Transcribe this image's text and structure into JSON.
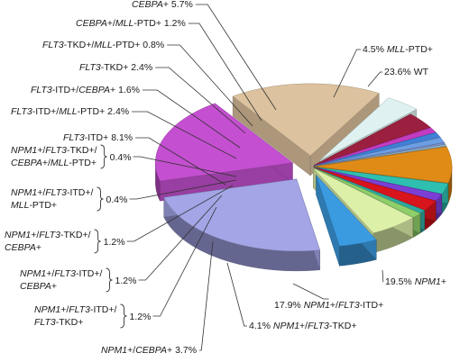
{
  "chart_data": {
    "type": "pie",
    "style": "3d-exploded",
    "slices": [
      {
        "label": "WT",
        "value": 23.6,
        "color": "#a3a5e6",
        "text": [
          {
            "t": "23.6% WT"
          }
        ]
      },
      {
        "label": "NPM1+",
        "value": 19.5,
        "color": "#c44fd0",
        "text": [
          {
            "t": "19.5% "
          },
          {
            "t": "NPM1",
            "i": true
          },
          {
            "t": "+"
          }
        ]
      },
      {
        "label": "NPM1+/FLT3-ITD+",
        "value": 17.9,
        "color": "#dcc29e",
        "text": [
          {
            "t": "17.9% "
          },
          {
            "t": "NPM1",
            "i": true
          },
          {
            "t": "+/"
          },
          {
            "t": "FLT3",
            "i": true
          },
          {
            "t": "-ITD+"
          }
        ]
      },
      {
        "label": "NPM1+/FLT3-TKD+",
        "value": 4.1,
        "color": "#dff2f1",
        "text": [
          {
            "t": "4.1% "
          },
          {
            "t": "NPM1",
            "i": true
          },
          {
            "t": "+/"
          },
          {
            "t": "FLT3",
            "i": true
          },
          {
            "t": "-TKD+"
          }
        ]
      },
      {
        "label": "NPM1+/CEBPA+",
        "value": 3.7,
        "color": "#9b1f3f",
        "text": [
          {
            "t": "NPM1",
            "i": true
          },
          {
            "t": "+/"
          },
          {
            "t": "CEBPA",
            "i": true
          },
          {
            "t": "+ 3.7%"
          }
        ]
      },
      {
        "label": "NPM1+/FLT3-ITD+/FLT3-TKD+",
        "value": 1.2,
        "color": "#c33bc0",
        "value_text": "1.2%",
        "lines": [
          [
            {
              "t": "NPM1",
              "i": true
            },
            {
              "t": "+/"
            },
            {
              "t": "FLT3",
              "i": true
            },
            {
              "t": "-ITD+/"
            }
          ],
          [
            {
              "t": "FLT3",
              "i": true
            },
            {
              "t": "-TKD+"
            }
          ]
        ]
      },
      {
        "label": "NPM1+/FLT3-ITD+/CEBPA+",
        "value": 1.2,
        "color": "#3f7fd6",
        "value_text": "1.2%",
        "lines": [
          [
            {
              "t": "NPM1",
              "i": true
            },
            {
              "t": "+/"
            },
            {
              "t": "FLT3",
              "i": true
            },
            {
              "t": "-ITD+/"
            }
          ],
          [
            {
              "t": "CEBPA",
              "i": true
            },
            {
              "t": "+"
            }
          ]
        ]
      },
      {
        "label": "NPM1+/FLT3-TKD+/CEBPA+",
        "value": 1.2,
        "color": "#6d9fe2",
        "value_text": "1.2%",
        "lines": [
          [
            {
              "t": "NPM1",
              "i": true
            },
            {
              "t": "+/"
            },
            {
              "t": "FLT3",
              "i": true
            },
            {
              "t": "-TKD+/"
            }
          ],
          [
            {
              "t": "CEBPA",
              "i": true
            },
            {
              "t": "+"
            }
          ]
        ]
      },
      {
        "label": "NPM1+/FLT3-ITD+/MLL-PTD+",
        "value": 0.4,
        "color": "#7a8fd0",
        "value_text": "0.4%",
        "lines": [
          [
            {
              "t": "NPM1",
              "i": true
            },
            {
              "t": "+/"
            },
            {
              "t": "FLT3",
              "i": true
            },
            {
              "t": "-ITD+/"
            }
          ],
          [
            {
              "t": "MLL",
              "i": true
            },
            {
              "t": "-PTD+"
            }
          ]
        ]
      },
      {
        "label": "NPM1+/FLT3-TKD+/CEBPA+/MLL-PTD+",
        "value": 0.4,
        "color": "#8fb3c8",
        "value_text": "0.4%",
        "lines": [
          [
            {
              "t": "NPM1",
              "i": true
            },
            {
              "t": "+/"
            },
            {
              "t": "FLT3",
              "i": true
            },
            {
              "t": "-TKD+/"
            }
          ],
          [
            {
              "t": "CEBPA",
              "i": true
            },
            {
              "t": "+/"
            },
            {
              "t": "MLL",
              "i": true
            },
            {
              "t": "-PTD+"
            }
          ]
        ]
      },
      {
        "label": "FLT3-ITD+",
        "value": 8.1,
        "color": "#e08b16",
        "text": [
          {
            "t": "FLT3",
            "i": true
          },
          {
            "t": "-ITD+ 8.1%"
          }
        ]
      },
      {
        "label": "FLT3-ITD+/MLL-PTD+",
        "value": 2.4,
        "color": "#2fbfb0",
        "text": [
          {
            "t": "FLT3",
            "i": true
          },
          {
            "t": "-ITD+/"
          },
          {
            "t": "MLL",
            "i": true
          },
          {
            "t": "-PTD+ 2.4%"
          }
        ]
      },
      {
        "label": "FLT3-ITD+/CEBPA+",
        "value": 1.6,
        "color": "#7b3fd4",
        "text": [
          {
            "t": "FLT3",
            "i": true
          },
          {
            "t": "-ITD+/"
          },
          {
            "t": "CEBPA",
            "i": true
          },
          {
            "t": "+ 1.6%"
          }
        ]
      },
      {
        "label": "FLT3-TKD+",
        "value": 2.4,
        "color": "#d8141c",
        "text": [
          {
            "t": "FLT3",
            "i": true
          },
          {
            "t": "-TKD+ 2.4%"
          }
        ]
      },
      {
        "label": "FLT3-TKD+/MLL-PTD+",
        "value": 0.8,
        "color": "#2fa8a0",
        "text": [
          {
            "t": "FLT3",
            "i": true
          },
          {
            "t": "-TKD+/"
          },
          {
            "t": "MLL",
            "i": true
          },
          {
            "t": "-PTD+ 0.8%"
          }
        ]
      },
      {
        "label": "CEBPA+/MLL-PTD+",
        "value": 1.2,
        "color": "#8fcf6a",
        "text": [
          {
            "t": "CEBPA",
            "i": true
          },
          {
            "t": "+/"
          },
          {
            "t": "MLL",
            "i": true
          },
          {
            "t": "-PTD+ 1.2%"
          }
        ]
      },
      {
        "label": "CEBPA+",
        "value": 5.7,
        "color": "#ddf0a8",
        "text": [
          {
            "t": "CEBPA",
            "i": true
          },
          {
            "t": "+ 5.7%"
          }
        ]
      },
      {
        "label": "MLL-PTD+",
        "value": 4.5,
        "color": "#3b9be0",
        "text": [
          {
            "t": "4.5% "
          },
          {
            "t": "MLL",
            "i": true
          },
          {
            "t": "-PTD+"
          }
        ]
      }
    ]
  }
}
